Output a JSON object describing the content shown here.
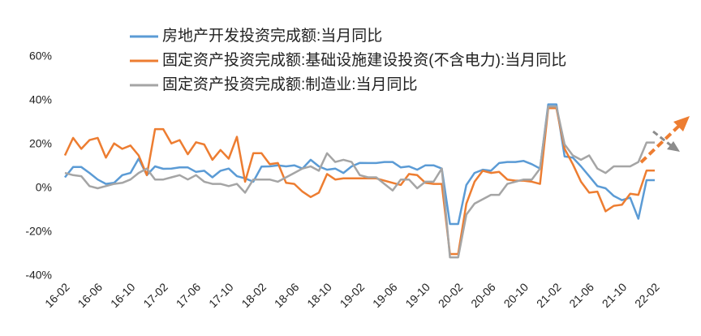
{
  "chart_data": {
    "type": "line",
    "categories": [
      "16-02",
      null,
      null,
      null,
      "16-06",
      null,
      null,
      null,
      "16-10",
      null,
      null,
      null,
      "17-02",
      null,
      null,
      null,
      "17-06",
      null,
      null,
      null,
      "17-10",
      null,
      null,
      null,
      "18-02",
      null,
      null,
      null,
      "18-06",
      null,
      null,
      null,
      "18-10",
      null,
      null,
      null,
      "19-02",
      null,
      null,
      null,
      "19-06",
      null,
      null,
      null,
      "19-10",
      null,
      null,
      null,
      "20-02",
      null,
      null,
      null,
      "20-06",
      null,
      null,
      null,
      "20-10",
      null,
      null,
      null,
      "21-02",
      null,
      null,
      null,
      "21-06",
      null,
      null,
      null,
      "21-10",
      null,
      null,
      null,
      "22-02"
    ],
    "series": [
      {
        "name": "房地产开发投资完成额:当月同比",
        "color": "#5b9bd5",
        "values": [
          5,
          9.7,
          9.7,
          7,
          4,
          2,
          2.5,
          6,
          7,
          13.5,
          6,
          10,
          8.9,
          9,
          9.5,
          9.5,
          7.5,
          8,
          5,
          8,
          9,
          5.5,
          4.5,
          3,
          9.9,
          10,
          10.5,
          10,
          10.5,
          9,
          13,
          10,
          8.5,
          9,
          7,
          10,
          11.6,
          11.5,
          11.5,
          12,
          12,
          9.5,
          10,
          8.5,
          10.5,
          10.5,
          9,
          -16.3,
          -16.3,
          1.5,
          7,
          8.5,
          8,
          11.5,
          12,
          12,
          12.5,
          11,
          9,
          38.3,
          38.3,
          14.5,
          14,
          10,
          5.5,
          1,
          0,
          -3.5,
          -5.4,
          -4.3,
          -13.9,
          3.7,
          3.7
        ]
      },
      {
        "name": "固定资产投资完成额:基础设施建设投资(不含电力):当月同比",
        "color": "#ed7d31",
        "values": [
          15,
          23,
          18,
          22,
          23,
          14,
          20.5,
          18,
          19.5,
          15,
          6,
          27,
          27,
          20.5,
          22,
          15.5,
          21,
          20,
          13,
          17.5,
          13.5,
          23.5,
          3,
          16,
          16,
          11,
          11.5,
          2.5,
          2,
          -1.5,
          -4,
          -2,
          6.5,
          4,
          4.5,
          4.5,
          4.5,
          4.5,
          4.5,
          3.5,
          2.5,
          1.5,
          6.5,
          6,
          2.5,
          2,
          2,
          -30,
          -30,
          -7,
          3,
          8,
          7,
          7.5,
          4,
          3.5,
          3.5,
          3,
          2,
          36.6,
          36.6,
          18,
          11,
          3,
          -2,
          -1.5,
          -10.5,
          -8,
          -7.5,
          -2.5,
          -3,
          8.1,
          8.1
        ]
      },
      {
        "name": "固定资产投资完成额:制造业:当月同比",
        "color": "#a5a5a5",
        "values": [
          7,
          6,
          5.5,
          1,
          0,
          1,
          2,
          2.5,
          4,
          7,
          9,
          4,
          4,
          5,
          6,
          4,
          6,
          3,
          2,
          2,
          1,
          2,
          -2,
          4,
          4,
          4,
          3,
          5,
          7,
          9,
          10,
          8,
          16,
          12,
          13,
          12,
          6,
          5,
          5,
          2,
          -1,
          4,
          4,
          0,
          3,
          3,
          9,
          -31.5,
          -31.5,
          -12,
          -7,
          -5,
          -3,
          -3,
          2,
          3,
          4,
          4,
          9,
          37.3,
          37.3,
          20,
          15,
          13,
          15,
          9,
          7,
          10,
          10,
          10,
          12,
          20.9,
          20.9
        ]
      }
    ],
    "ylim": [
      -40,
      60
    ],
    "yticks": [
      {
        "value": -40,
        "label": "-40%"
      },
      {
        "value": -20,
        "label": "-20%"
      },
      {
        "value": 0,
        "label": "0%"
      },
      {
        "value": 20,
        "label": "20%"
      },
      {
        "value": 40,
        "label": "40%"
      },
      {
        "value": 60,
        "label": "60%"
      }
    ],
    "grid": false
  }
}
